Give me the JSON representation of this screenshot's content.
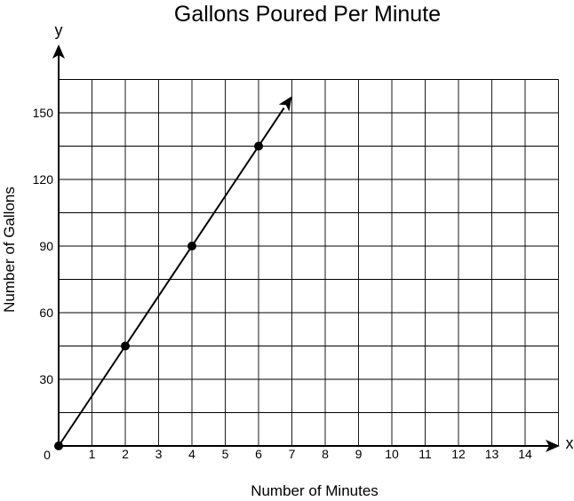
{
  "chart_data": {
    "type": "line",
    "title": "Gallons Poured Per Minute",
    "xlabel": "Number of Minutes",
    "ylabel": "Number of Gallons",
    "x_axis_letter": "x",
    "y_axis_letter": "y",
    "origin_label": "0",
    "xlim": [
      0,
      15
    ],
    "ylim": [
      0,
      165
    ],
    "x_gridlines_every": 1,
    "y_gridlines_every": 15,
    "grid": true,
    "x_tick_labels": [
      "1",
      "2",
      "3",
      "4",
      "5",
      "6",
      "7",
      "8",
      "9",
      "10",
      "11",
      "12",
      "13",
      "14"
    ],
    "y_tick_values": [
      30,
      60,
      90,
      120,
      150
    ],
    "y_tick_labels": [
      "30",
      "60",
      "90",
      "120",
      "150"
    ],
    "series": [
      {
        "x": [
          0,
          2,
          4,
          6
        ],
        "y": [
          0,
          45,
          90,
          135
        ],
        "ray_end": [
          7,
          157.5
        ]
      }
    ],
    "colors": {
      "line": "#000000",
      "grid": "#000000"
    }
  }
}
